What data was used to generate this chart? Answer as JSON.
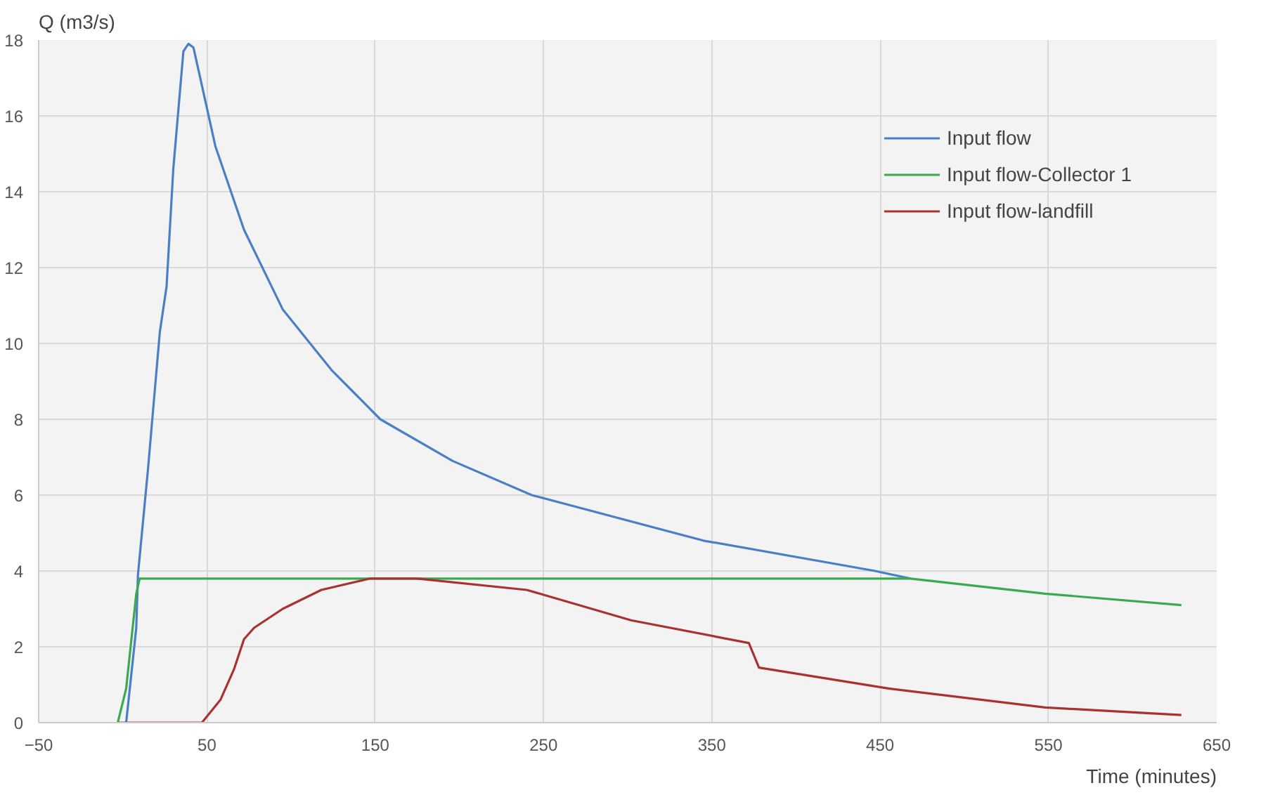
{
  "chart_data": {
    "type": "line",
    "xlabel": "Time (minutes)",
    "ylabel": "Q (m3/s)",
    "xlim": [
      -50,
      650
    ],
    "xticks": [
      -50,
      50,
      150,
      250,
      350,
      450,
      550,
      650
    ],
    "ylim": [
      0,
      18
    ],
    "yticks": [
      0,
      2,
      4,
      6,
      8,
      10,
      12,
      14,
      16,
      18
    ],
    "grid": true,
    "legend": "top right",
    "marker": "none",
    "line_style": "solid",
    "series": [
      {
        "name": "Input flow",
        "color": "#4a7fc8",
        "x": [
          2,
          8,
          9,
          15,
          22,
          26,
          30,
          36,
          39,
          42,
          45,
          55,
          72,
          95,
          124,
          153,
          196,
          243,
          345,
          447,
          468
        ],
        "values": [
          0,
          2.5,
          3.9,
          6.7,
          10.3,
          11.5,
          14.6,
          17.7,
          17.9,
          17.8,
          17.2,
          15.2,
          13.0,
          10.9,
          9.3,
          8.0,
          6.9,
          6.0,
          4.8,
          4.0,
          3.8
        ]
      },
      {
        "name": "Input flow-Collector 1",
        "color": "#3aaa50",
        "x": [
          -3,
          2,
          8,
          10,
          468,
          548,
          629
        ],
        "values": [
          0,
          0.9,
          3.4,
          3.8,
          3.8,
          3.4,
          3.1
        ]
      },
      {
        "name": "Input flow-landfill",
        "color": "#a83232",
        "x": [
          -3,
          47,
          58,
          66,
          72,
          78,
          95,
          118,
          147,
          175,
          240,
          302,
          372,
          378,
          455,
          548,
          629
        ],
        "values": [
          0,
          0,
          0.6,
          1.4,
          2.2,
          2.5,
          3.0,
          3.5,
          3.8,
          3.8,
          3.5,
          2.7,
          2.1,
          1.45,
          0.9,
          0.4,
          0.2
        ]
      }
    ]
  }
}
